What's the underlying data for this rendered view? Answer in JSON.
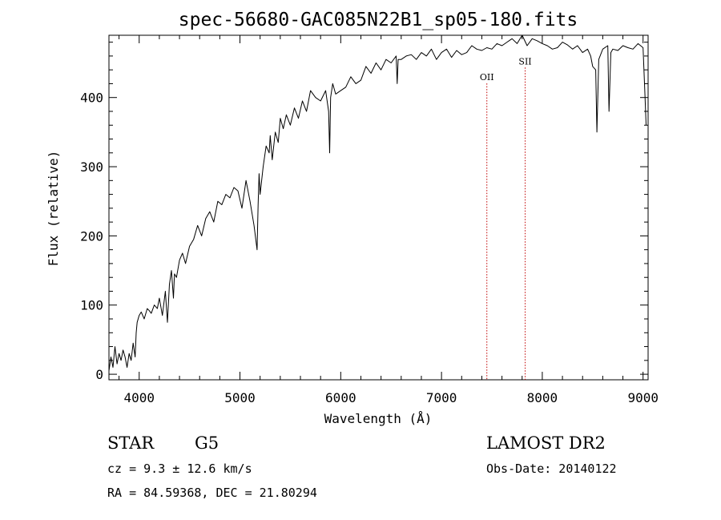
{
  "chart_data": {
    "type": "line",
    "title": "spec-56680-GAC085N22B1_sp05-180.fits",
    "xlabel": "Wavelength (Å)",
    "ylabel": "Flux (relative)",
    "xlim": [
      3700,
      9050
    ],
    "ylim": [
      -8,
      490
    ],
    "xticks": [
      4000,
      5000,
      6000,
      7000,
      8000,
      9000
    ],
    "yticks": [
      0,
      100,
      200,
      300,
      400
    ],
    "grid": false,
    "series": [
      {
        "name": "spectrum",
        "x": [
          3700,
          3720,
          3740,
          3760,
          3780,
          3800,
          3820,
          3840,
          3860,
          3880,
          3900,
          3920,
          3940,
          3960,
          3970,
          3980,
          4000,
          4020,
          4050,
          4080,
          4100,
          4120,
          4150,
          4180,
          4200,
          4230,
          4260,
          4280,
          4300,
          4320,
          4340,
          4350,
          4370,
          4400,
          4430,
          4460,
          4500,
          4540,
          4580,
          4620,
          4660,
          4700,
          4740,
          4780,
          4820,
          4860,
          4900,
          4940,
          4980,
          5020,
          5060,
          5100,
          5140,
          5170,
          5180,
          5190,
          5200,
          5230,
          5260,
          5290,
          5300,
          5320,
          5350,
          5380,
          5400,
          5430,
          5460,
          5500,
          5540,
          5580,
          5620,
          5660,
          5700,
          5750,
          5800,
          5850,
          5880,
          5890,
          5900,
          5920,
          5950,
          6000,
          6050,
          6100,
          6150,
          6200,
          6250,
          6300,
          6350,
          6400,
          6450,
          6500,
          6550,
          6560,
          6570,
          6600,
          6650,
          6700,
          6750,
          6800,
          6850,
          6900,
          6950,
          7000,
          7050,
          7100,
          7150,
          7200,
          7250,
          7300,
          7350,
          7400,
          7450,
          7500,
          7550,
          7600,
          7650,
          7700,
          7750,
          7800,
          7850,
          7900,
          7950,
          8000,
          8050,
          8100,
          8150,
          8200,
          8250,
          8300,
          8350,
          8400,
          8450,
          8480,
          8500,
          8530,
          8542,
          8560,
          8600,
          8650,
          8662,
          8680,
          8700,
          8750,
          8800,
          8850,
          8900,
          8950,
          9000,
          9020,
          9030
        ],
        "y": [
          5,
          25,
          10,
          40,
          15,
          30,
          20,
          35,
          25,
          10,
          30,
          20,
          45,
          25,
          60,
          75,
          85,
          90,
          80,
          95,
          92,
          88,
          100,
          95,
          110,
          85,
          120,
          75,
          130,
          150,
          110,
          145,
          140,
          165,
          175,
          160,
          185,
          195,
          215,
          200,
          225,
          235,
          220,
          250,
          245,
          260,
          255,
          270,
          265,
          240,
          280,
          250,
          215,
          180,
          245,
          290,
          260,
          300,
          330,
          320,
          345,
          310,
          350,
          335,
          370,
          355,
          375,
          360,
          385,
          370,
          395,
          380,
          410,
          400,
          395,
          410,
          380,
          320,
          400,
          420,
          405,
          410,
          415,
          430,
          420,
          425,
          445,
          435,
          450,
          440,
          455,
          450,
          460,
          420,
          455,
          455,
          460,
          462,
          455,
          465,
          460,
          470,
          455,
          465,
          470,
          458,
          468,
          462,
          465,
          475,
          470,
          468,
          472,
          470,
          478,
          475,
          480,
          485,
          478,
          490,
          475,
          485,
          482,
          478,
          475,
          470,
          472,
          480,
          476,
          470,
          475,
          465,
          470,
          460,
          445,
          440,
          350,
          455,
          470,
          475,
          380,
          465,
          470,
          468,
          475,
          472,
          470,
          478,
          472,
          400,
          360
        ]
      }
    ],
    "annotations": [
      {
        "label": "OII",
        "wavelength": 7450,
        "label_flux": 425
      },
      {
        "label": "SII",
        "wavelength": 7830,
        "label_flux": 448
      }
    ]
  },
  "info": {
    "class": "STAR",
    "subclass": "G5",
    "survey": "LAMOST DR2",
    "cz": "cz = 9.3 ± 12.6 km/s",
    "obs_date": "Obs-Date: 20140122",
    "coords": "RA =  84.59368, DEC =  21.80294"
  }
}
